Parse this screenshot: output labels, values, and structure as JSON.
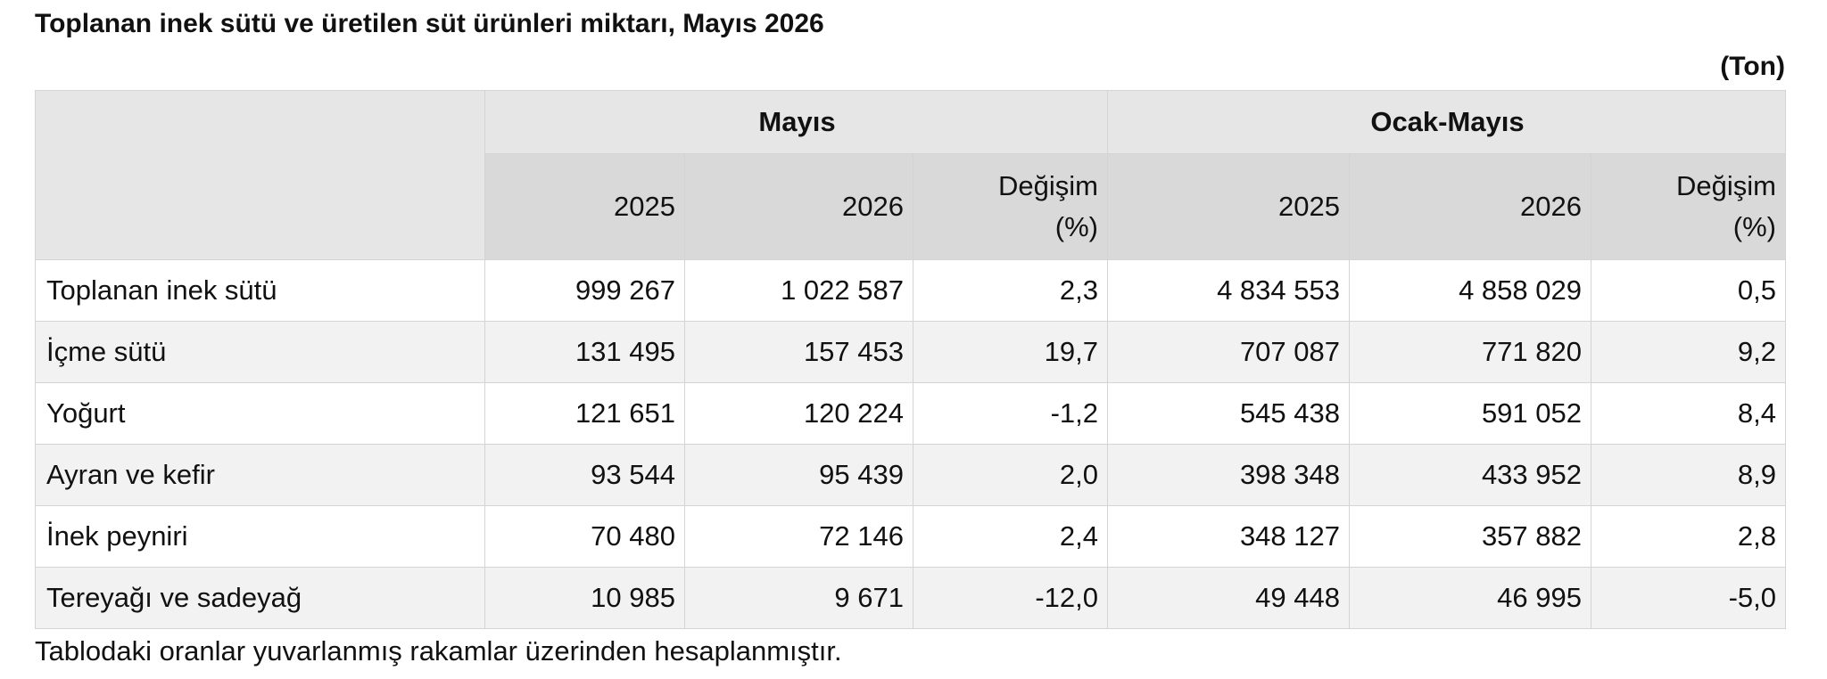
{
  "title": "Toplanan inek sütü ve üretilen süt ürünleri miktarı, Mayıs 2026",
  "unit": "(Ton)",
  "table": {
    "group_headers": [
      "Mayıs",
      "Ocak-Mayıs"
    ],
    "column_headers": [
      "2025",
      "2026",
      "Değişim (%)",
      "2025",
      "2026",
      "Değişim (%)"
    ],
    "rows": [
      [
        "Toplanan inek sütü",
        "999 267",
        "1 022 587",
        "2,3",
        "4 834 553",
        "4 858 029",
        "0,5"
      ],
      [
        "İçme sütü",
        "131 495",
        "157 453",
        "19,7",
        "707 087",
        "771 820",
        "9,2"
      ],
      [
        "Yoğurt",
        "121 651",
        "120 224",
        "-1,2",
        "545 438",
        "591 052",
        "8,4"
      ],
      [
        "Ayran ve kefir",
        "93 544",
        "95 439",
        "2,0",
        "398 348",
        "433 952",
        "8,9"
      ],
      [
        "İnek peyniri",
        "70 480",
        "72 146",
        "2,4",
        "348 127",
        "357 882",
        "2,8"
      ],
      [
        "Tereyağı ve sadeyağ",
        "10 985",
        "9 671",
        "-12,0",
        "49 448",
        "46 995",
        "-5,0"
      ]
    ]
  },
  "footnote": "Tablodaki oranlar yuvarlanmış rakamlar üzerinden hesaplanmıştır."
}
